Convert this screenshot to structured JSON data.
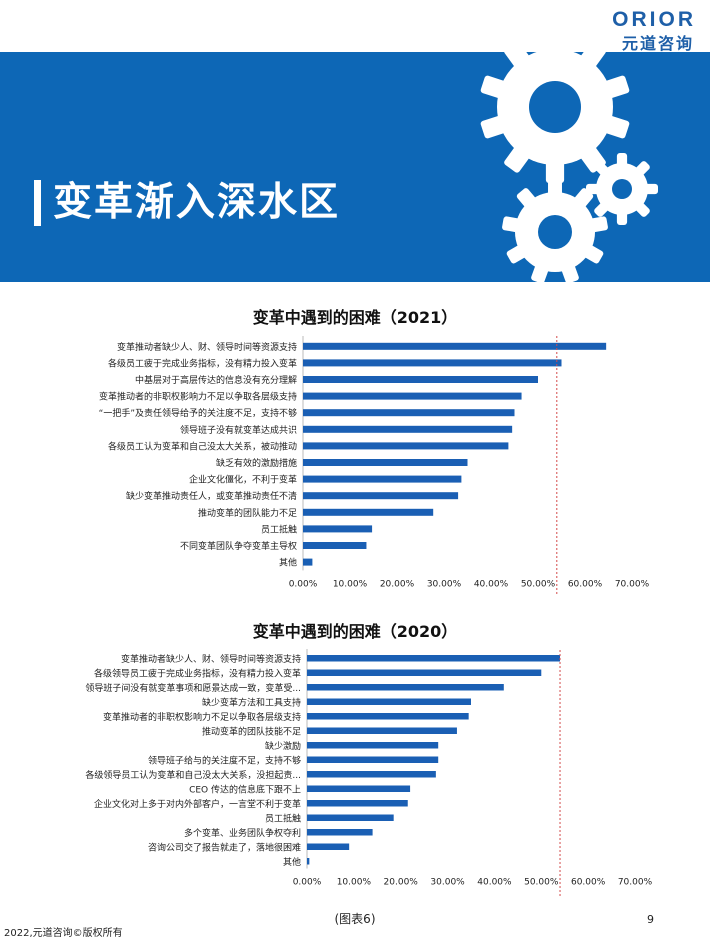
{
  "logo": {
    "word": "ORIOR",
    "cn": "元道咨询"
  },
  "header": {
    "title": "变革渐入深水区"
  },
  "colors": {
    "banner": "#0d67b6",
    "bar": "#1a5fb4",
    "refline": "#d24a4a"
  },
  "chart_data": [
    {
      "type": "bar",
      "orientation": "horizontal",
      "title": "变革中遇到的困难（2021）",
      "categories": [
        "变革推动者缺少人、财、领导时间等资源支持",
        "各级员工疲于完成业务指标，没有精力投入变革",
        "中基层对于高层传达的信息没有充分理解",
        "变革推动者的非职权影响力不足以争取各层级支持",
        "“一把手”及责任领导给予的关注度不足，支持不够",
        "领导班子没有就变革达成共识",
        "各级员工认为变革和自己没太大关系，被动推动",
        "缺乏有效的激励措施",
        "企业文化僵化，不利于变革",
        "缺少变革推动责任人，或变革推动责任不清",
        "推动变革的团队能力不足",
        "员工抵触",
        "不同变革团队争夺变革主导权",
        "其他"
      ],
      "values": [
        0.645,
        0.55,
        0.5,
        0.465,
        0.45,
        0.445,
        0.437,
        0.35,
        0.337,
        0.33,
        0.277,
        0.147,
        0.135,
        0.02
      ],
      "xlim": [
        0,
        0.7
      ],
      "ticks": [
        "0.00%",
        "10.00%",
        "20.00%",
        "30.00%",
        "40.00%",
        "50.00%",
        "60.00%",
        "70.00%"
      ],
      "refline": 0.54
    },
    {
      "type": "bar",
      "orientation": "horizontal",
      "title": "变革中遇到的困难（2020）",
      "categories": [
        "变革推动者缺少人、财、领导时间等资源支持",
        "各级领导员工疲于完成业务指标，没有精力投入变革",
        "领导班子间没有就变革事项和愿景达成一致，变革受...",
        "缺少变革方法和工具支持",
        "变革推动者的非职权影响力不足以争取各层级支持",
        "推动变革的团队技能不足",
        "缺少激励",
        "领导班子给与的关注度不足，支持不够",
        "各级领导员工认为变革和自己没太大关系，没担起责...",
        "CEO 传达的信息底下跟不上",
        "企业文化对上多于对内外部客户，一言堂不利于变革",
        "员工抵触",
        "多个变革、业务团队争权夺利",
        "咨询公司交了报告就走了，落地很困难",
        "其他"
      ],
      "values": [
        0.54,
        0.5,
        0.42,
        0.35,
        0.345,
        0.32,
        0.28,
        0.28,
        0.275,
        0.22,
        0.215,
        0.185,
        0.14,
        0.09,
        0.005
      ],
      "xlim": [
        0,
        0.7
      ],
      "ticks": [
        "0.00%",
        "10.00%",
        "20.00%",
        "30.00%",
        "40.00%",
        "50.00%",
        "60.00%",
        "70.00%"
      ],
      "refline": 0.54
    }
  ],
  "footer": {
    "copyright": "2022,元道咨询©版权所有",
    "caption": "(图表6)",
    "page": "9"
  }
}
